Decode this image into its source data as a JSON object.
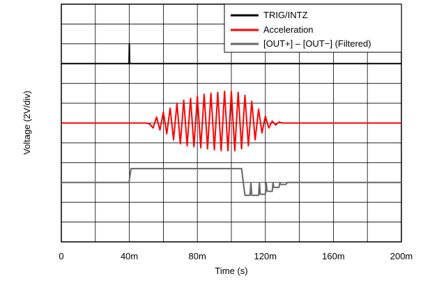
{
  "chart_data": {
    "type": "line",
    "xlabel": "Time (s)",
    "ylabel": "Voltage (2V/div)",
    "x_ticks": [
      {
        "value": 0,
        "label": "0"
      },
      {
        "value": 0.04,
        "label": "40m"
      },
      {
        "value": 0.08,
        "label": "80m"
      },
      {
        "value": 0.12,
        "label": "120m"
      },
      {
        "value": 0.16,
        "label": "160m"
      },
      {
        "value": 0.2,
        "label": "200m"
      }
    ],
    "xlim": [
      0,
      0.2
    ],
    "ylim": [
      -6,
      18
    ],
    "grid": true,
    "vertical_divisions": 12,
    "legend_position": "top-right",
    "series": [
      {
        "name": "TRIG/INTZ",
        "color": "#000000",
        "points": [
          [
            0,
            12
          ],
          [
            0.0398,
            12
          ],
          [
            0.04,
            14.0
          ],
          [
            0.0402,
            12
          ],
          [
            0.2,
            12
          ]
        ]
      },
      {
        "name": "Acceleration",
        "color": "#ff0000",
        "points": [
          [
            0,
            6.0
          ],
          [
            0.05,
            6.0
          ],
          [
            0.052,
            5.9
          ],
          [
            0.054,
            5.5
          ],
          [
            0.056,
            6.6
          ],
          [
            0.058,
            5.3
          ],
          [
            0.06,
            7.1
          ],
          [
            0.062,
            4.9
          ],
          [
            0.064,
            7.5
          ],
          [
            0.066,
            4.3
          ],
          [
            0.068,
            8.0
          ],
          [
            0.07,
            3.9
          ],
          [
            0.072,
            8.3
          ],
          [
            0.074,
            3.7
          ],
          [
            0.076,
            8.5
          ],
          [
            0.078,
            3.6
          ],
          [
            0.08,
            8.7
          ],
          [
            0.082,
            3.5
          ],
          [
            0.084,
            8.9
          ],
          [
            0.086,
            3.4
          ],
          [
            0.088,
            9.0
          ],
          [
            0.09,
            3.3
          ],
          [
            0.092,
            9.1
          ],
          [
            0.094,
            3.2
          ],
          [
            0.096,
            9.2
          ],
          [
            0.098,
            3.2
          ],
          [
            0.1,
            9.2
          ],
          [
            0.102,
            3.2
          ],
          [
            0.104,
            9.1
          ],
          [
            0.106,
            3.4
          ],
          [
            0.108,
            8.8
          ],
          [
            0.11,
            3.7
          ],
          [
            0.112,
            8.2
          ],
          [
            0.114,
            4.3
          ],
          [
            0.116,
            7.4
          ],
          [
            0.118,
            5.0
          ],
          [
            0.12,
            6.7
          ],
          [
            0.122,
            5.5
          ],
          [
            0.124,
            6.2
          ],
          [
            0.126,
            5.8
          ],
          [
            0.128,
            6.1
          ],
          [
            0.13,
            6.0
          ],
          [
            0.2,
            6.0
          ]
        ]
      },
      {
        "name": "[OUT+] – [OUT−] (Filtered)",
        "color": "#666666",
        "points": [
          [
            0,
            0
          ],
          [
            0.0398,
            0
          ],
          [
            0.041,
            1.4
          ],
          [
            0.106,
            1.4
          ],
          [
            0.107,
            0
          ],
          [
            0.108,
            -1.3
          ],
          [
            0.111,
            -1.3
          ],
          [
            0.1115,
            0
          ],
          [
            0.112,
            -1.3
          ],
          [
            0.116,
            -1.3
          ],
          [
            0.1165,
            0
          ],
          [
            0.117,
            -1.2
          ],
          [
            0.12,
            -1.2
          ],
          [
            0.1205,
            0
          ],
          [
            0.121,
            -0.9
          ],
          [
            0.124,
            -0.9
          ],
          [
            0.1245,
            0
          ],
          [
            0.125,
            -0.5
          ],
          [
            0.128,
            -0.5
          ],
          [
            0.1285,
            0
          ],
          [
            0.129,
            -0.2
          ],
          [
            0.132,
            -0.2
          ],
          [
            0.133,
            0
          ],
          [
            0.2,
            0
          ]
        ]
      }
    ]
  }
}
